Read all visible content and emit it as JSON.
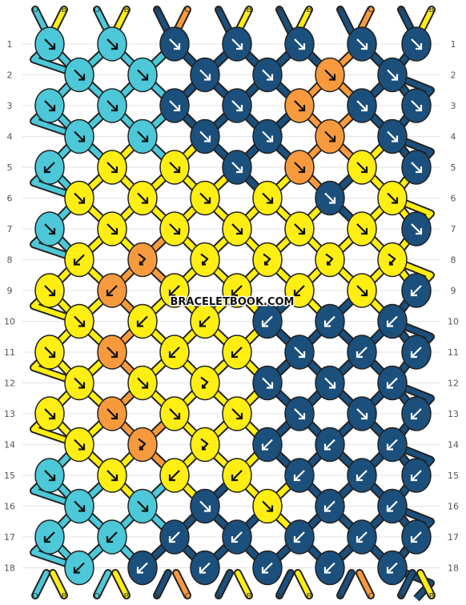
{
  "watermark": "BRACELETBOOK.COM",
  "colors": {
    "D": "#4cc8d8",
    "B": "#ffee11",
    "A": "#1b4f7c",
    "C": "#f79a3e"
  },
  "strands": [
    "D",
    "B",
    "D",
    "B",
    "A",
    "C",
    "A",
    "B",
    "A",
    "B",
    "A",
    "C",
    "A",
    "B"
  ],
  "row_numbers": [
    "1",
    "2",
    "3",
    "4",
    "5",
    "6",
    "7",
    "8",
    "9",
    "10",
    "11",
    "12",
    "13",
    "14",
    "15",
    "16",
    "17",
    "18"
  ],
  "knots": [
    [
      {
        "c": "D",
        "d": "R"
      },
      {
        "c": "D",
        "d": "R"
      },
      {
        "c": "A",
        "d": "R"
      },
      {
        "c": "A",
        "d": "R"
      },
      {
        "c": "A",
        "d": "R"
      },
      {
        "c": "A",
        "d": "R"
      },
      {
        "c": "A",
        "d": "R"
      }
    ],
    [
      {
        "c": "D",
        "d": "R"
      },
      {
        "c": "D",
        "d": "R"
      },
      {
        "c": "A",
        "d": "R"
      },
      {
        "c": "A",
        "d": "R"
      },
      {
        "c": "C",
        "d": "R"
      },
      {
        "c": "A",
        "d": "R"
      }
    ],
    [
      {
        "c": "D",
        "d": "R"
      },
      {
        "c": "D",
        "d": "R"
      },
      {
        "c": "A",
        "d": "R"
      },
      {
        "c": "A",
        "d": "R"
      },
      {
        "c": "C",
        "d": "R"
      },
      {
        "c": "A",
        "d": "R"
      },
      {
        "c": "A",
        "d": "R"
      }
    ],
    [
      {
        "c": "D",
        "d": "R"
      },
      {
        "c": "D",
        "d": "R"
      },
      {
        "c": "A",
        "d": "R"
      },
      {
        "c": "A",
        "d": "R"
      },
      {
        "c": "C",
        "d": "R"
      },
      {
        "c": "A",
        "d": "R"
      }
    ],
    [
      {
        "c": "D",
        "d": "L"
      },
      {
        "c": "B",
        "d": "R"
      },
      {
        "c": "B",
        "d": "R"
      },
      {
        "c": "A",
        "d": "R"
      },
      {
        "c": "C",
        "d": "R"
      },
      {
        "c": "B",
        "d": "R"
      },
      {
        "c": "A",
        "d": "R"
      }
    ],
    [
      {
        "c": "B",
        "d": "R"
      },
      {
        "c": "B",
        "d": "R"
      },
      {
        "c": "B",
        "d": "R"
      },
      {
        "c": "B",
        "d": "R"
      },
      {
        "c": "A",
        "d": "R"
      },
      {
        "c": "B",
        "d": "R"
      }
    ],
    [
      {
        "c": "D",
        "d": "R"
      },
      {
        "c": "B",
        "d": "R"
      },
      {
        "c": "B",
        "d": "R"
      },
      {
        "c": "B",
        "d": "R"
      },
      {
        "c": "B",
        "d": "R"
      },
      {
        "c": "B",
        "d": "R"
      },
      {
        "c": "A",
        "d": "R"
      }
    ],
    [
      {
        "c": "B",
        "d": "L"
      },
      {
        "c": "C",
        "d": "RL"
      },
      {
        "c": "B",
        "d": "RL"
      },
      {
        "c": "B",
        "d": "RL"
      },
      {
        "c": "B",
        "d": "RL"
      },
      {
        "c": "B",
        "d": "RL"
      }
    ],
    [
      {
        "c": "B",
        "d": "R"
      },
      {
        "c": "C",
        "d": "L"
      },
      {
        "c": "B",
        "d": "L"
      },
      {
        "c": "B",
        "d": "L"
      },
      {
        "c": "B",
        "d": "L"
      },
      {
        "c": "B",
        "d": "R"
      },
      {
        "c": "A",
        "d": "L"
      }
    ],
    [
      {
        "c": "B",
        "d": "R"
      },
      {
        "c": "B",
        "d": "L"
      },
      {
        "c": "B",
        "d": "L"
      },
      {
        "c": "A",
        "d": "L"
      },
      {
        "c": "A",
        "d": "L"
      },
      {
        "c": "A",
        "d": "L"
      }
    ],
    [
      {
        "c": "B",
        "d": "R"
      },
      {
        "c": "C",
        "d": "R"
      },
      {
        "c": "B",
        "d": "L"
      },
      {
        "c": "B",
        "d": "L"
      },
      {
        "c": "A",
        "d": "R"
      },
      {
        "c": "A",
        "d": "L"
      },
      {
        "c": "A",
        "d": "L"
      }
    ],
    [
      {
        "c": "B",
        "d": "R"
      },
      {
        "c": "B",
        "d": "R"
      },
      {
        "c": "B",
        "d": "RL"
      },
      {
        "c": "A",
        "d": "R"
      },
      {
        "c": "A",
        "d": "R"
      },
      {
        "c": "A",
        "d": "L"
      }
    ],
    [
      {
        "c": "B",
        "d": "R"
      },
      {
        "c": "C",
        "d": "R"
      },
      {
        "c": "B",
        "d": "R"
      },
      {
        "c": "B",
        "d": "R"
      },
      {
        "c": "A",
        "d": "R"
      },
      {
        "c": "A",
        "d": "R"
      },
      {
        "c": "A",
        "d": "L"
      }
    ],
    [
      {
        "c": "B",
        "d": "R"
      },
      {
        "c": "C",
        "d": "RL"
      },
      {
        "c": "B",
        "d": "RL"
      },
      {
        "c": "A",
        "d": "L"
      },
      {
        "c": "A",
        "d": "L"
      },
      {
        "c": "A",
        "d": "L"
      }
    ],
    [
      {
        "c": "D",
        "d": "R"
      },
      {
        "c": "B",
        "d": "R"
      },
      {
        "c": "B",
        "d": "L"
      },
      {
        "c": "B",
        "d": "L"
      },
      {
        "c": "A",
        "d": "L"
      },
      {
        "c": "A",
        "d": "L"
      },
      {
        "c": "A",
        "d": "L"
      }
    ],
    [
      {
        "c": "D",
        "d": "R"
      },
      {
        "c": "D",
        "d": "R"
      },
      {
        "c": "A",
        "d": "R"
      },
      {
        "c": "B",
        "d": "R"
      },
      {
        "c": "A",
        "d": "L"
      },
      {
        "c": "A",
        "d": "L"
      }
    ],
    [
      {
        "c": "D",
        "d": "L"
      },
      {
        "c": "D",
        "d": "L"
      },
      {
        "c": "A",
        "d": "L"
      },
      {
        "c": "A",
        "d": "L"
      },
      {
        "c": "A",
        "d": "L"
      },
      {
        "c": "A",
        "d": "L"
      },
      {
        "c": "A",
        "d": "L"
      }
    ],
    [
      {
        "c": "D",
        "d": "L"
      },
      {
        "c": "A",
        "d": "L"
      },
      {
        "c": "A",
        "d": "L"
      },
      {
        "c": "A",
        "d": "L"
      },
      {
        "c": "A",
        "d": "L"
      },
      {
        "c": "A",
        "d": "L"
      }
    ]
  ]
}
